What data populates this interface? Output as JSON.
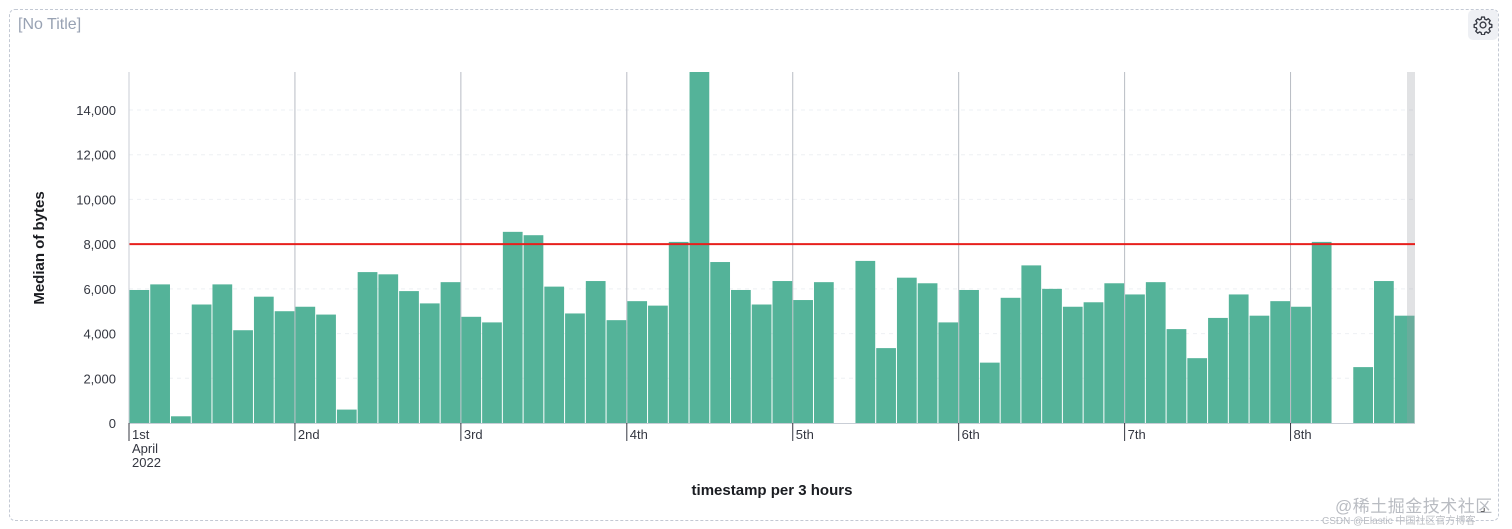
{
  "panel": {
    "title": "[No Title]",
    "settings_icon": "gear-icon",
    "resize_icon": "resize-corner-icon"
  },
  "watermark": {
    "main": "@稀土掘金技术社区",
    "sub": "CSDN @Elastic 中国社区官方博客"
  },
  "colors": {
    "bar": "#54b399",
    "threshold": "#e7201d",
    "grid": "#d3dae6"
  },
  "chart_data": {
    "type": "bar",
    "title": "",
    "xlabel": "timestamp per 3 hours",
    "ylabel": "Median of bytes",
    "ylim": [
      0,
      15700
    ],
    "yticks": [
      0,
      2000,
      4000,
      6000,
      8000,
      10000,
      12000,
      14000
    ],
    "ytick_labels": [
      "0",
      "2,000",
      "4,000",
      "6,000",
      "8,000",
      "10,000",
      "12,000",
      "14,000"
    ],
    "x_start": "2022-04-01T00:00",
    "x_interval_hours": 3,
    "x_ticks": [
      {
        "label": "1st",
        "sublabel": "April",
        "sublabel2": "2022",
        "bucket": 0
      },
      {
        "label": "2nd",
        "bucket": 8
      },
      {
        "label": "3rd",
        "bucket": 16
      },
      {
        "label": "4th",
        "bucket": 24
      },
      {
        "label": "5th",
        "bucket": 32
      },
      {
        "label": "6th",
        "bucket": 40
      },
      {
        "label": "7th",
        "bucket": 48
      },
      {
        "label": "8th",
        "bucket": 56
      }
    ],
    "threshold": 8000,
    "grid": true,
    "series": [
      {
        "values": [
          5950,
          6200,
          300,
          5300,
          6200,
          4150,
          5650,
          5000,
          5200,
          4850,
          600,
          6750,
          6650,
          5900,
          5350,
          6300,
          4750,
          4500,
          8550,
          8400,
          6100,
          4900,
          6350,
          4600,
          5450,
          5250,
          8100,
          15700,
          7200,
          5950,
          5300,
          6350,
          5500,
          6300,
          null,
          7250,
          3350,
          6500,
          6250,
          4500,
          5950,
          2700,
          5600,
          7050,
          6000,
          5200,
          5400,
          6250,
          5750,
          6300,
          4200,
          2900,
          4700,
          5750,
          4800,
          5450,
          5200,
          8100,
          null,
          2500,
          6350,
          4800
        ]
      }
    ]
  }
}
